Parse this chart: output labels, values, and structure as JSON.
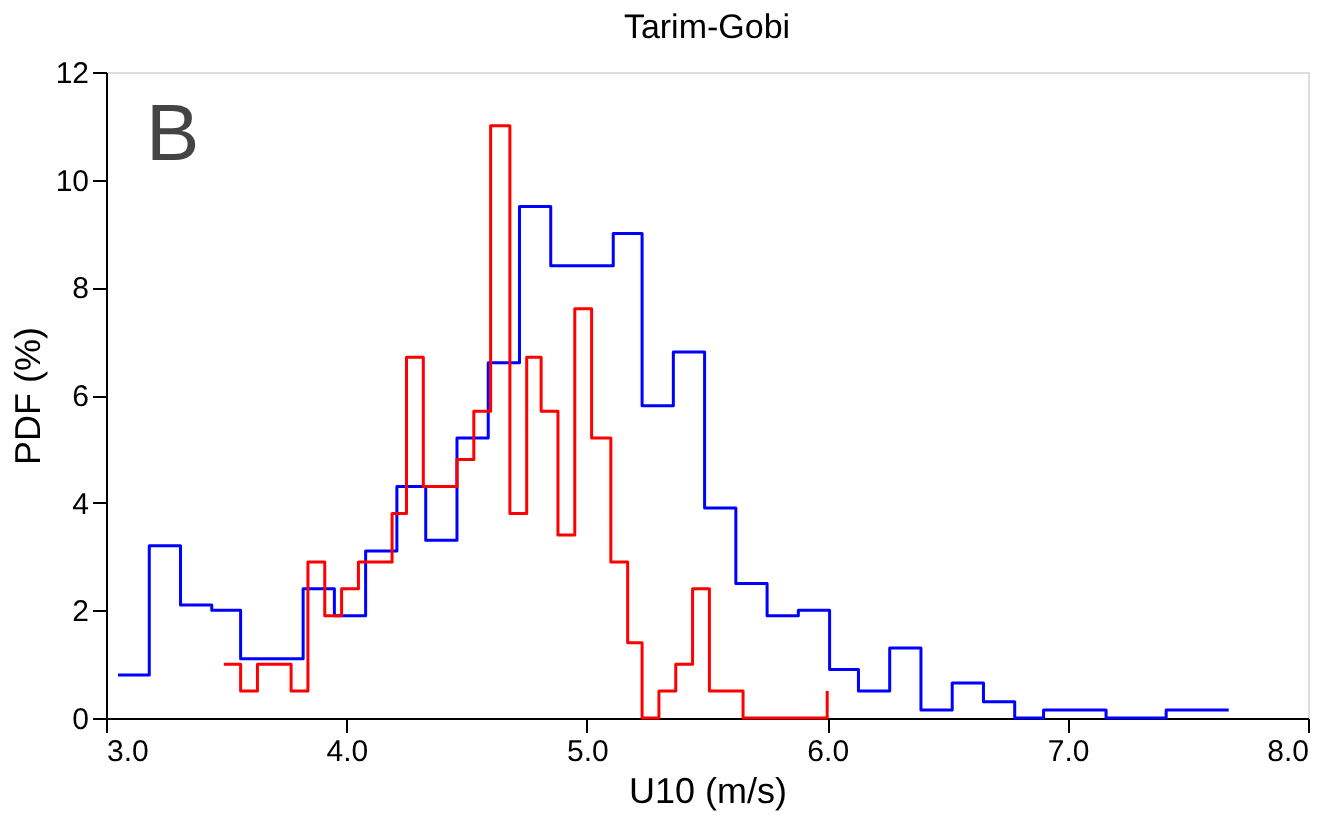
{
  "chart_data": {
    "type": "step",
    "title": "Tarim-Gobi",
    "xlabel": "U10 (m/s)",
    "ylabel": "PDF (%)",
    "annotations": [
      "B"
    ],
    "series": [
      {
        "color": "#0000ff",
        "x": [
          3.05,
          3.18,
          3.31,
          3.44,
          3.56,
          3.69,
          3.82,
          3.95,
          4.08,
          4.21,
          4.33,
          4.46,
          4.59,
          4.72,
          4.85,
          4.98,
          5.11,
          5.23,
          5.36,
          5.49,
          5.62,
          5.75,
          5.88,
          6.01,
          6.13,
          6.26,
          6.39,
          6.52,
          6.65,
          6.78,
          6.9,
          7.03,
          7.16,
          7.29,
          7.41,
          7.54,
          7.67
        ],
        "values": [
          0.8,
          3.2,
          2.1,
          2.0,
          1.1,
          1.1,
          2.4,
          1.9,
          3.1,
          4.3,
          3.3,
          5.2,
          6.6,
          9.5,
          8.4,
          8.4,
          9.0,
          5.8,
          6.8,
          3.9,
          2.5,
          1.9,
          2.0,
          0.9,
          0.5,
          1.3,
          0.15,
          0.65,
          0.3,
          0,
          0.15,
          0.15,
          0,
          0,
          0.15,
          0.15,
          0.15
        ]
      },
      {
        "color": "#ff0000",
        "x": [
          3.49,
          3.56,
          3.63,
          3.7,
          3.77,
          3.84,
          3.91,
          3.98,
          4.05,
          4.12,
          4.19,
          4.25,
          4.32,
          4.39,
          4.46,
          4.53,
          4.6,
          4.68,
          4.75,
          4.81,
          4.88,
          4.95,
          5.02,
          5.1,
          5.17,
          5.23,
          5.3,
          5.37,
          5.44,
          5.51,
          5.58,
          5.65,
          6.0
        ],
        "values": [
          1.0,
          0.5,
          1.0,
          1.0,
          0.5,
          2.9,
          1.9,
          2.4,
          2.9,
          2.9,
          3.8,
          6.7,
          4.3,
          4.3,
          4.8,
          5.7,
          11.0,
          3.8,
          6.7,
          5.7,
          3.4,
          7.6,
          5.2,
          2.9,
          1.4,
          0,
          0.5,
          1.0,
          2.4,
          0.5,
          0.5,
          0,
          0.5
        ]
      }
    ],
    "xlim": [
      3,
      8
    ],
    "xticks": [
      {
        "value": 3,
        "label": "3.0"
      },
      {
        "value": 4,
        "label": "4.0"
      },
      {
        "value": 5,
        "label": "5.0"
      },
      {
        "value": 6,
        "label": "6.0"
      },
      {
        "value": 7,
        "label": "7.0"
      },
      {
        "value": 8,
        "label": "8.0"
      }
    ],
    "ylim": [
      0,
      12
    ],
    "yticks": [
      0,
      2,
      4,
      6,
      8,
      10,
      12
    ],
    "grid": false
  }
}
